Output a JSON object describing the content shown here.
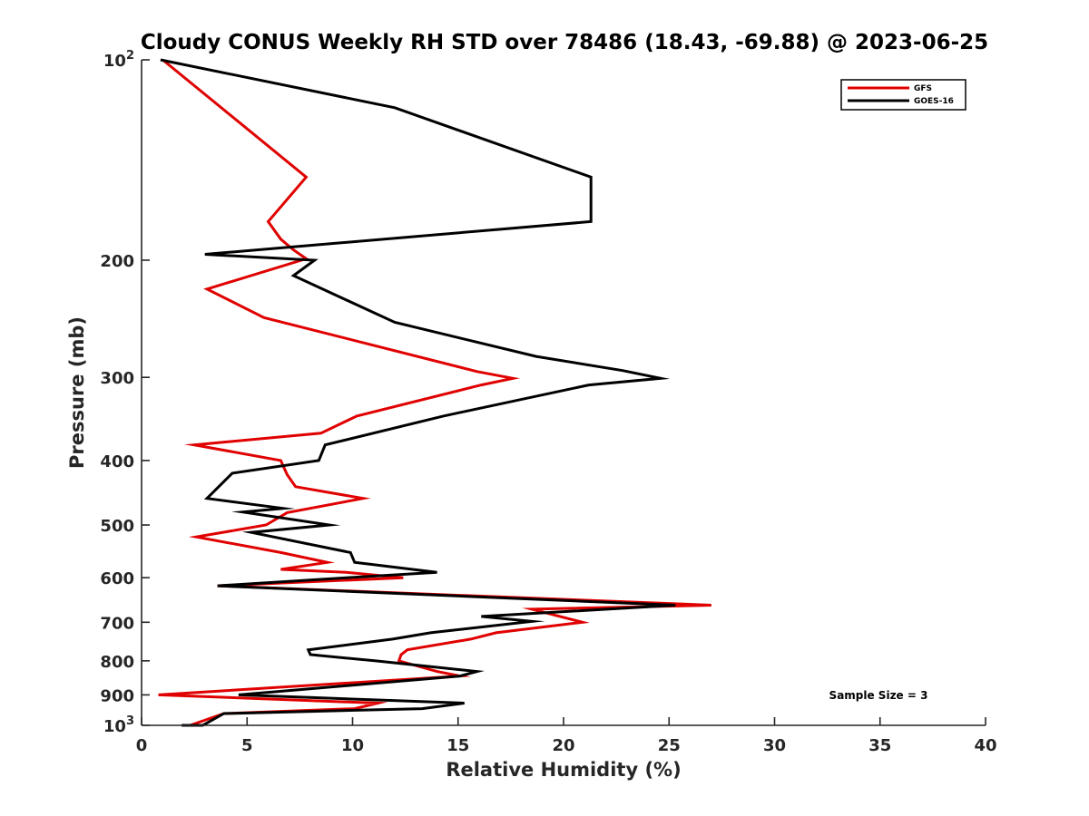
{
  "chart_data": {
    "type": "line",
    "title": "Cloudy CONUS Weekly RH STD over 78486 (18.43, -69.88) @ 2023-06-25",
    "xlabel": "Relative Humidity (%)",
    "ylabel": "Pressure (mb)",
    "xlim": [
      0,
      40
    ],
    "ylim": [
      100,
      1000
    ],
    "y_scale": "log",
    "y_reversed": true,
    "grid": false,
    "x_ticks": [
      "0",
      "5",
      "10",
      "15",
      "20",
      "25",
      "30",
      "35",
      "40"
    ],
    "y_ticks": [
      {
        "value": 100,
        "base": "10",
        "exp": "2"
      },
      {
        "value": 200,
        "label": "200"
      },
      {
        "value": 300,
        "label": "300"
      },
      {
        "value": 400,
        "label": "400"
      },
      {
        "value": 500,
        "label": "500"
      },
      {
        "value": 600,
        "label": "600"
      },
      {
        "value": 700,
        "label": "700"
      },
      {
        "value": 800,
        "label": "800"
      },
      {
        "value": 900,
        "label": "900"
      },
      {
        "value": 1000,
        "base": "10",
        "exp": "3"
      }
    ],
    "legend": {
      "position": "top-right"
    },
    "annotation": "Sample Size = 3",
    "series": [
      {
        "name": "GFS",
        "color": "#e00000",
        "points": [
          [
            1.0,
            100
          ],
          [
            7.8,
            150
          ],
          [
            6.0,
            175
          ],
          [
            6.6,
            186
          ],
          [
            7.2,
            193
          ],
          [
            7.8,
            199
          ],
          [
            3.1,
            221
          ],
          [
            5.8,
            244
          ],
          [
            15.9,
            294
          ],
          [
            17.6,
            301
          ],
          [
            16.1,
            308
          ],
          [
            10.2,
            343
          ],
          [
            8.5,
            364
          ],
          [
            2.5,
            379
          ],
          [
            6.6,
            400
          ],
          [
            6.9,
            420
          ],
          [
            7.3,
            438
          ],
          [
            10.5,
            456
          ],
          [
            6.9,
            479
          ],
          [
            5.9,
            500
          ],
          [
            2.6,
            521
          ],
          [
            6.6,
            550
          ],
          [
            8.8,
            569
          ],
          [
            6.6,
            583
          ],
          [
            9.7,
            589
          ],
          [
            12.4,
            600
          ],
          [
            3.6,
            617
          ],
          [
            27.0,
            660
          ],
          [
            18.5,
            669
          ],
          [
            20.9,
            700
          ],
          [
            16.8,
            726
          ],
          [
            15.6,
            742
          ],
          [
            12.6,
            770
          ],
          [
            12.3,
            783
          ],
          [
            12.2,
            800
          ],
          [
            14.0,
            830
          ],
          [
            15.1,
            843
          ],
          [
            0.8,
            900
          ],
          [
            11.2,
            926
          ],
          [
            10.1,
            944
          ],
          [
            3.9,
            960
          ],
          [
            2.3,
            1000
          ]
        ]
      },
      {
        "name": "GOES-16",
        "color": "#000000",
        "points": [
          [
            0.9,
            100
          ],
          [
            12.0,
            118
          ],
          [
            21.3,
            150
          ],
          [
            21.3,
            175
          ],
          [
            3.0,
            196
          ],
          [
            8.2,
            200
          ],
          [
            7.2,
            211
          ],
          [
            12.0,
            248
          ],
          [
            18.7,
            279
          ],
          [
            22.8,
            293
          ],
          [
            24.6,
            301
          ],
          [
            21.2,
            308
          ],
          [
            14.3,
            343
          ],
          [
            8.7,
            379
          ],
          [
            8.4,
            400
          ],
          [
            4.3,
            418
          ],
          [
            3.1,
            456
          ],
          [
            6.7,
            472
          ],
          [
            4.8,
            478
          ],
          [
            8.9,
            500
          ],
          [
            5.2,
            513
          ],
          [
            9.9,
            550
          ],
          [
            10.1,
            569
          ],
          [
            14.0,
            589
          ],
          [
            9.7,
            600
          ],
          [
            3.6,
            617
          ],
          [
            25.3,
            660
          ],
          [
            16.1,
            686
          ],
          [
            18.5,
            698
          ],
          [
            13.7,
            726
          ],
          [
            11.9,
            742
          ],
          [
            7.9,
            770
          ],
          [
            8.0,
            783
          ],
          [
            11.1,
            800
          ],
          [
            15.9,
            830
          ],
          [
            15.1,
            843
          ],
          [
            4.6,
            900
          ],
          [
            15.3,
            926
          ],
          [
            13.3,
            944
          ],
          [
            3.9,
            960
          ],
          [
            2.9,
            1000
          ],
          [
            1.9,
            1000
          ]
        ]
      }
    ]
  }
}
